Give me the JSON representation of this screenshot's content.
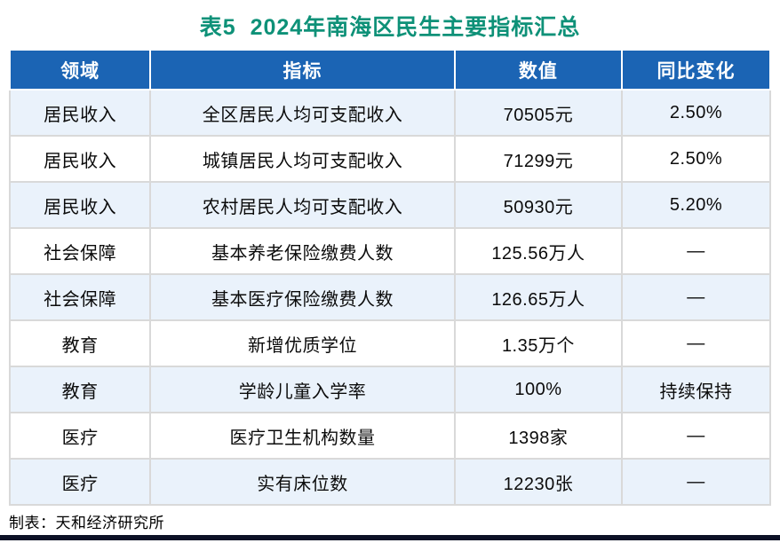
{
  "title": "表5  2024年南海区民生主要指标汇总",
  "footer": {
    "credit": "制表：天和经济研究所"
  },
  "colors": {
    "title_green": "#0E9178",
    "header_bg": "#1B64B4",
    "header_text": "#FFFFFF",
    "row_alt_bg": "#EAF2FB",
    "row_bg": "#FFFFFF",
    "grid_line": "#D9D9D9",
    "bottom_bar": "#0C1126"
  },
  "chart_data": {
    "type": "table",
    "title": "表5  2024年南海区民生主要指标汇总",
    "columns": [
      "领域",
      "指标",
      "数值",
      "同比变化"
    ],
    "rows": [
      [
        "居民收入",
        "全区居民人均可支配收入",
        "70505元",
        "2.50%"
      ],
      [
        "居民收入",
        "城镇居民人均可支配收入",
        "71299元",
        "2.50%"
      ],
      [
        "居民收入",
        "农村居民人均可支配收入",
        "50930元",
        "5.20%"
      ],
      [
        "社会保障",
        "基本养老保险缴费人数",
        "125.56万人",
        "—"
      ],
      [
        "社会保障",
        "基本医疗保险缴费人数",
        "126.65万人",
        "—"
      ],
      [
        "教育",
        "新增优质学位",
        "1.35万个",
        "—"
      ],
      [
        "教育",
        "学龄儿童入学率",
        "100%",
        "持续保持"
      ],
      [
        "医疗",
        "医疗卫生机构数量",
        "1398家",
        "—"
      ],
      [
        "医疗",
        "实有床位数",
        "12230张",
        "—"
      ]
    ],
    "layout_hints": {
      "column_width_pct": [
        18.5,
        40,
        22,
        19.5
      ],
      "alternating_rows_start": "alt",
      "all_cells_centered": true
    }
  }
}
